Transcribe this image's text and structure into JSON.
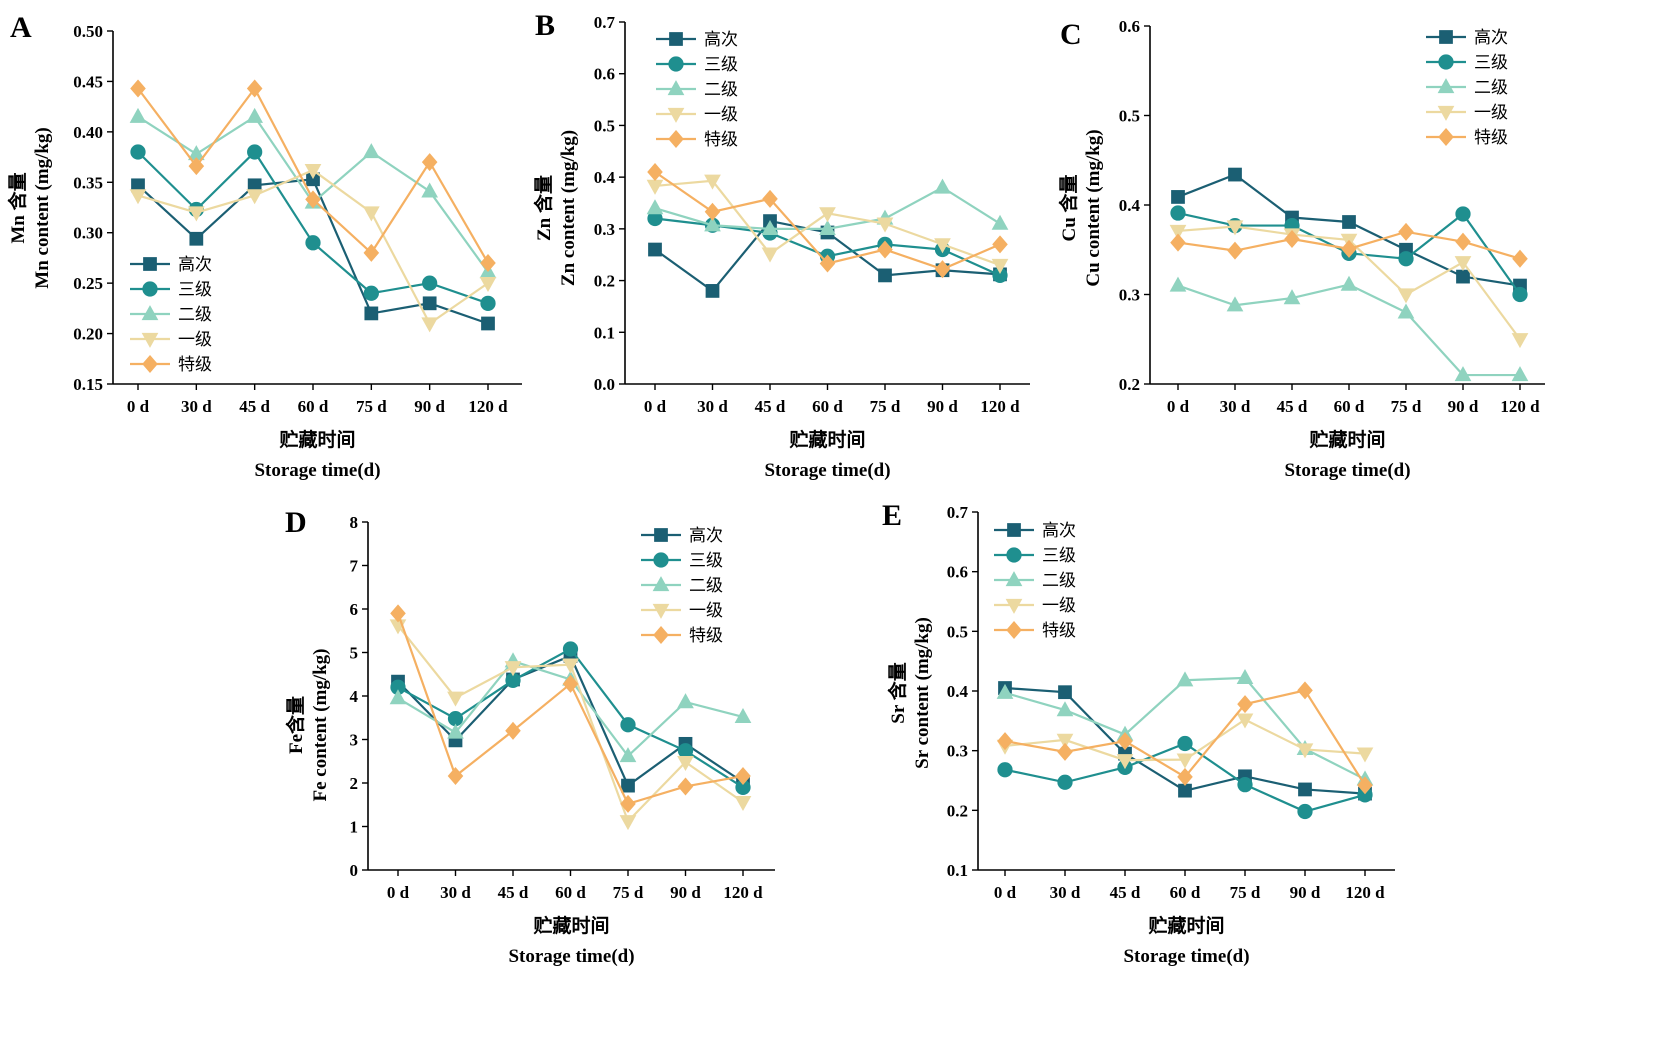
{
  "colors": {
    "高次": "#1b5f73",
    "三级": "#1f8f8f",
    "二级": "#8fd3bf",
    "一级": "#ecd9a0",
    "特级": "#f5b062"
  },
  "markers": {
    "高次": "square",
    "三级": "circle",
    "二级": "triangle-up",
    "一级": "triangle-down",
    "特级": "diamond"
  },
  "chart_data": [
    {
      "panel": "A",
      "type": "line",
      "categories": [
        "0 d",
        "30 d",
        "45 d",
        "60 d",
        "75 d",
        "90 d",
        "120 d"
      ],
      "xlabel_cn": "贮藏时间",
      "xlabel_en": "Storage time(d)",
      "ylabel_cn": "Mn 含量",
      "ylabel_en": "Mn content (mg/kg)",
      "ylim": [
        0.15,
        0.5
      ],
      "yticks": [
        "0.15",
        "0.20",
        "0.25",
        "0.30",
        "0.35",
        "0.40",
        "0.45",
        "0.50"
      ],
      "series": [
        {
          "name": "高次",
          "values": [
            0.347,
            0.294,
            0.347,
            0.353,
            0.22,
            0.23,
            0.21
          ]
        },
        {
          "name": "三级",
          "values": [
            0.38,
            0.323,
            0.38,
            0.29,
            0.24,
            0.25,
            0.23
          ]
        },
        {
          "name": "二级",
          "values": [
            0.415,
            0.378,
            0.415,
            0.33,
            0.38,
            0.341,
            0.261
          ]
        },
        {
          "name": "一级",
          "values": [
            0.337,
            0.32,
            0.337,
            0.362,
            0.32,
            0.21,
            0.25
          ]
        },
        {
          "name": "特级",
          "values": [
            0.443,
            0.366,
            0.443,
            0.333,
            0.28,
            0.37,
            0.27
          ]
        }
      ]
    },
    {
      "panel": "B",
      "type": "line",
      "categories": [
        "0 d",
        "30 d",
        "45 d",
        "60 d",
        "75 d",
        "90 d",
        "120 d"
      ],
      "xlabel_cn": "贮藏时间",
      "xlabel_en": "Storage time(d)",
      "ylabel_cn": "Zn 含量",
      "ylabel_en": "Zn content (mg/kg)",
      "ylim": [
        0.0,
        0.7
      ],
      "yticks": [
        "0.0",
        "0.1",
        "0.2",
        "0.3",
        "0.4",
        "0.5",
        "0.6",
        "0.7"
      ],
      "series": [
        {
          "name": "高次",
          "values": [
            0.26,
            0.18,
            0.315,
            0.293,
            0.21,
            0.22,
            0.212
          ]
        },
        {
          "name": "三级",
          "values": [
            0.32,
            0.307,
            0.292,
            0.247,
            0.27,
            0.26,
            0.21
          ]
        },
        {
          "name": "二级",
          "values": [
            0.34,
            0.307,
            0.3,
            0.3,
            0.32,
            0.38,
            0.31
          ]
        },
        {
          "name": "一级",
          "values": [
            0.383,
            0.393,
            0.252,
            0.33,
            0.31,
            0.27,
            0.23
          ]
        },
        {
          "name": "特级",
          "values": [
            0.41,
            0.333,
            0.358,
            0.233,
            0.26,
            0.222,
            0.27
          ]
        }
      ]
    },
    {
      "panel": "C",
      "type": "line",
      "categories": [
        "0 d",
        "30 d",
        "45 d",
        "60 d",
        "75 d",
        "90 d",
        "120 d"
      ],
      "xlabel_cn": "贮藏时间",
      "xlabel_en": "Storage time(d)",
      "ylabel_cn": "Cu 含量",
      "ylabel_en": "Cu content (mg/kg)",
      "ylim": [
        0.2,
        0.6
      ],
      "yticks": [
        "0.2",
        "0.3",
        "0.4",
        "0.5",
        "0.6"
      ],
      "series": [
        {
          "name": "高次",
          "values": [
            0.409,
            0.434,
            0.386,
            0.381,
            0.35,
            0.32,
            0.31
          ]
        },
        {
          "name": "三级",
          "values": [
            0.391,
            0.377,
            0.377,
            0.346,
            0.34,
            0.39,
            0.3
          ]
        },
        {
          "name": "二级",
          "values": [
            0.31,
            0.288,
            0.296,
            0.311,
            0.28,
            0.21,
            0.21
          ]
        },
        {
          "name": "一级",
          "values": [
            0.371,
            0.376,
            0.367,
            0.361,
            0.3,
            0.336,
            0.25
          ]
        },
        {
          "name": "特级",
          "values": [
            0.358,
            0.349,
            0.362,
            0.351,
            0.37,
            0.359,
            0.34
          ]
        }
      ]
    },
    {
      "panel": "D",
      "type": "line",
      "categories": [
        "0 d",
        "30 d",
        "45 d",
        "60 d",
        "75 d",
        "90 d",
        "120 d"
      ],
      "xlabel_cn": "贮藏时间",
      "xlabel_en": "Storage time(d)",
      "ylabel_cn": "Fe含量",
      "ylabel_en": "Fe content (mg/kg)",
      "ylim": [
        0,
        8
      ],
      "yticks": [
        "0",
        "1",
        "2",
        "3",
        "4",
        "5",
        "6",
        "7",
        "8"
      ],
      "series": [
        {
          "name": "高次",
          "values": [
            4.33,
            2.98,
            4.38,
            4.92,
            1.94,
            2.9,
            2.02
          ]
        },
        {
          "name": "三级",
          "values": [
            4.2,
            3.48,
            4.36,
            5.08,
            3.34,
            2.74,
            1.9
          ]
        },
        {
          "name": "二级",
          "values": [
            3.95,
            3.16,
            4.8,
            4.38,
            2.62,
            3.86,
            3.52
          ]
        },
        {
          "name": "一级",
          "values": [
            5.62,
            3.96,
            4.66,
            4.72,
            1.12,
            2.48,
            1.56
          ]
        },
        {
          "name": "特级",
          "values": [
            5.9,
            2.16,
            3.2,
            4.28,
            1.52,
            1.92,
            2.16
          ]
        }
      ]
    },
    {
      "panel": "E",
      "type": "line",
      "categories": [
        "0 d",
        "30 d",
        "45 d",
        "60 d",
        "75 d",
        "90 d",
        "120 d"
      ],
      "xlabel_cn": "贮藏时间",
      "xlabel_en": "Storage time(d)",
      "ylabel_cn": "Sr 含量",
      "ylabel_en": "Sr content (mg/kg)",
      "ylim": [
        0.1,
        0.7
      ],
      "yticks": [
        "0.1",
        "0.2",
        "0.3",
        "0.4",
        "0.5",
        "0.6",
        "0.7"
      ],
      "series": [
        {
          "name": "高次",
          "values": [
            0.405,
            0.398,
            0.295,
            0.233,
            0.257,
            0.235,
            0.228
          ]
        },
        {
          "name": "三级",
          "values": [
            0.268,
            0.247,
            0.272,
            0.312,
            0.243,
            0.198,
            0.226
          ]
        },
        {
          "name": "二级",
          "values": [
            0.397,
            0.368,
            0.327,
            0.418,
            0.422,
            0.303,
            0.252
          ]
        },
        {
          "name": "一级",
          "values": [
            0.308,
            0.318,
            0.284,
            0.285,
            0.352,
            0.302,
            0.295
          ]
        },
        {
          "name": "特级",
          "values": [
            0.316,
            0.298,
            0.316,
            0.256,
            0.378,
            0.401,
            0.242
          ]
        }
      ]
    }
  ]
}
